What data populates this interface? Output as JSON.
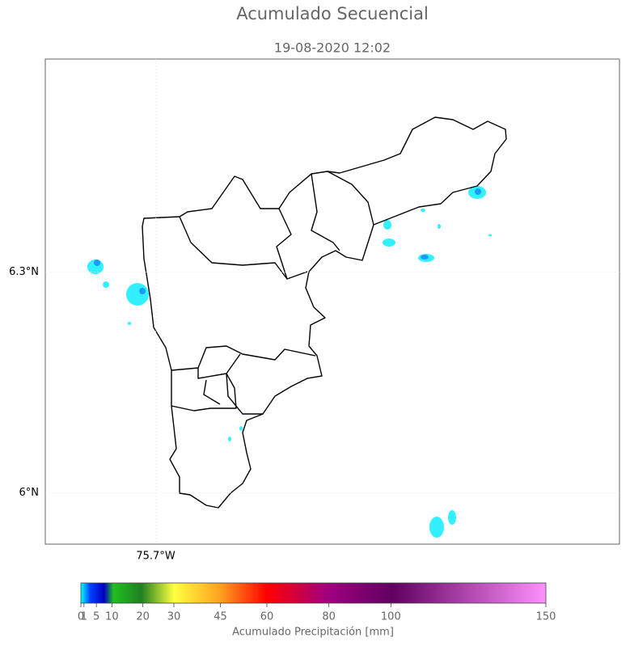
{
  "title": "Acumulado Secuencial",
  "subtitle": "19-08-2020 12:02",
  "map": {
    "lat_lim": [
      5.93,
      6.59
    ],
    "lon_lim": [
      -75.85,
      -75.07
    ],
    "lat_ticks": [
      {
        "value": 6.3,
        "label": "6.3°N"
      },
      {
        "value": 6,
        "label": "6°N"
      }
    ],
    "lon_ticks": [
      {
        "value": -75.7,
        "label": "75.7°W"
      }
    ]
  },
  "colorbar": {
    "label": "Acumulado Precipitación [mm]",
    "lim": [
      0,
      150
    ],
    "ticks": [
      0,
      1,
      5,
      10,
      20,
      30,
      45,
      60,
      80,
      100,
      150
    ]
  }
}
